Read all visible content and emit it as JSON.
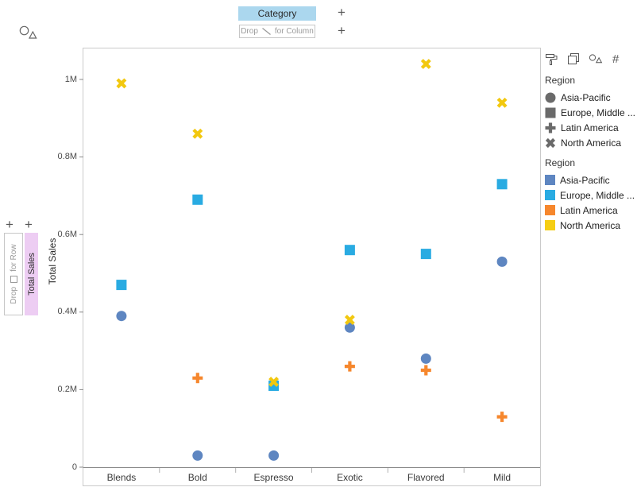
{
  "app": {
    "chart_type_icon": "circle-triangle-scatter",
    "shelves": {
      "add_label": "+",
      "column_pill": "Category",
      "column_drop_prefix": "Drop",
      "column_drop_suffix": "for Column",
      "row_drop_prefix": "Drop",
      "row_drop_suffix": "for Row",
      "row_pill": "Total Sales"
    },
    "colors": {
      "category_pill_bg": "#abd7ee",
      "row_pill_bg": "#edcdf3"
    },
    "legend_panel": {
      "toolbar_icons": [
        "paint-roller",
        "overlapping-squares",
        "shapes",
        "number"
      ],
      "number_glyph": "#",
      "shape_legend": {
        "title": "Region",
        "marker_color": "#6a6a6a",
        "items": [
          {
            "label": "Asia-Pacific",
            "shape": "circle"
          },
          {
            "label": "Europe, Middle ...",
            "shape": "square"
          },
          {
            "label": "Latin America",
            "shape": "plus"
          },
          {
            "label": "North America",
            "shape": "x"
          }
        ]
      },
      "color_legend": {
        "title": "Region",
        "items": [
          {
            "label": "Asia-Pacific",
            "color": "#5e86c1"
          },
          {
            "label": "Europe, Middle ...",
            "color": "#29abe2"
          },
          {
            "label": "Latin America",
            "color": "#f6872d"
          },
          {
            "label": "North America",
            "color": "#f5ce14"
          }
        ]
      }
    }
  },
  "chart_data": {
    "type": "scatter",
    "title": "",
    "xlabel": "",
    "ylabel": "Total Sales",
    "categories": [
      "Blends",
      "Bold",
      "Espresso",
      "Exotic",
      "Flavored",
      "Mild"
    ],
    "ylim": [
      0,
      1080000
    ],
    "grid": false,
    "legend_position": "right",
    "y_ticks": [
      {
        "label": "0",
        "value": 0
      },
      {
        "label": "0.2M",
        "value": 200000
      },
      {
        "label": "0.4M",
        "value": 400000
      },
      {
        "label": "0.6M",
        "value": 600000
      },
      {
        "label": "0.8M",
        "value": 800000
      },
      {
        "label": "1M",
        "value": 1000000
      }
    ],
    "series": [
      {
        "name": "Asia-Pacific",
        "shape": "circle",
        "color": "#5e86c1",
        "values": [
          390000,
          30000,
          30000,
          360000,
          280000,
          530000
        ]
      },
      {
        "name": "Europe, Middle ...",
        "shape": "square",
        "color": "#29abe2",
        "values": [
          470000,
          690000,
          210000,
          560000,
          550000,
          730000
        ]
      },
      {
        "name": "Latin America",
        "shape": "plus",
        "color": "#f6872d",
        "values": [
          null,
          230000,
          null,
          260000,
          250000,
          130000
        ]
      },
      {
        "name": "North America",
        "shape": "x",
        "color": "#f2c80f",
        "values": [
          990000,
          860000,
          220000,
          380000,
          1040000,
          940000
        ]
      }
    ]
  }
}
